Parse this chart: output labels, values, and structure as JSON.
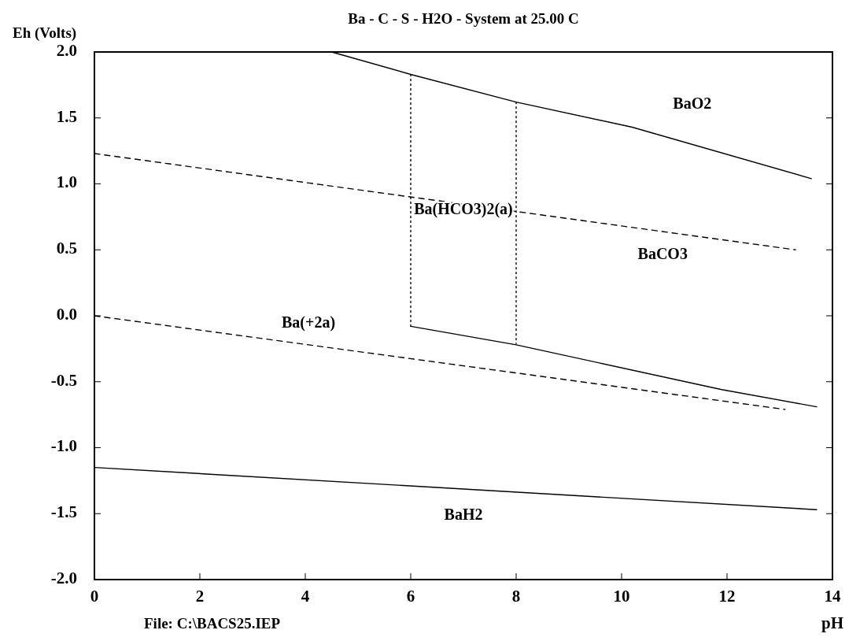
{
  "chart_data": {
    "type": "line",
    "title": "Ba - C - S - H2O - System at 25.00 C",
    "xlabel": "pH",
    "ylabel": "Eh (Volts)",
    "xlim": [
      0,
      14
    ],
    "ylim": [
      -2,
      2
    ],
    "xticks": [
      0,
      2,
      4,
      6,
      8,
      10,
      12,
      14
    ],
    "yticks": [
      {
        "value": 2,
        "label": "2.0"
      },
      {
        "value": 1.5,
        "label": "1.5"
      },
      {
        "value": 1,
        "label": "1.0"
      },
      {
        "value": 0.5,
        "label": "0.5"
      },
      {
        "value": 0,
        "label": "0.0"
      },
      {
        "value": -0.5,
        "label": "-0.5"
      },
      {
        "value": -1,
        "label": "-1.0"
      },
      {
        "value": -1.5,
        "label": "-1.5"
      },
      {
        "value": -2,
        "label": "-2.0"
      }
    ],
    "grid": false,
    "series": [
      {
        "color": "#000000",
        "line_style": "solid",
        "x": [
          4.5,
          6.0,
          8.0,
          10.2,
          13.6
        ],
        "values": [
          2.0,
          1.83,
          1.62,
          1.43,
          1.04
        ]
      },
      {
        "color": "#000000",
        "line_style": "dashed",
        "x": [
          0,
          13.3
        ],
        "values": [
          1.23,
          0.5
        ]
      },
      {
        "color": "#000000",
        "line_style": "dotted",
        "x": [
          6.0,
          6.0
        ],
        "values": [
          1.83,
          -0.08
        ]
      },
      {
        "color": "#000000",
        "line_style": "dotted",
        "x": [
          8.0,
          8.0
        ],
        "values": [
          1.62,
          -0.21
        ]
      },
      {
        "color": "#000000",
        "line_style": "solid",
        "x": [
          6.0,
          8.0,
          11.9,
          13.7
        ],
        "values": [
          -0.08,
          -0.22,
          -0.56,
          -0.69
        ]
      },
      {
        "color": "#000000",
        "line_style": "dashed",
        "x": [
          0,
          13.1
        ],
        "values": [
          0.0,
          -0.71
        ]
      },
      {
        "color": "#000000",
        "line_style": "solid",
        "x": [
          0,
          13.7
        ],
        "values": [
          -1.15,
          -1.47
        ]
      }
    ],
    "annotations": [
      "BaO2",
      "Ba(HCO3)2(a)",
      "BaCO3",
      "Ba(+2a)",
      "BaH2",
      "File: C:\\BACS25.IEP"
    ]
  }
}
